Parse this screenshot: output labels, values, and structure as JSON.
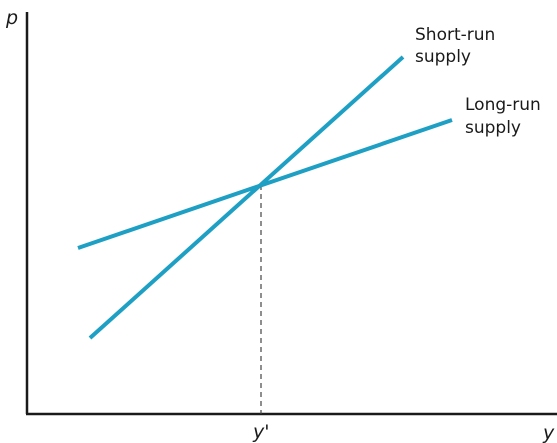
{
  "axes": {
    "y_axis_label": "p",
    "x_axis_label": "y"
  },
  "equilibrium": {
    "tick_label": "y'"
  },
  "curves": {
    "short_run": {
      "label_line1": "Short-run",
      "label_line2": "supply",
      "color": "#1e9fc4"
    },
    "long_run": {
      "label_line1": "Long-run",
      "label_line2": "supply",
      "color": "#1e9fc4"
    }
  },
  "colors": {
    "axis": "#1a1a1a",
    "curves": "#1e9fc4"
  }
}
